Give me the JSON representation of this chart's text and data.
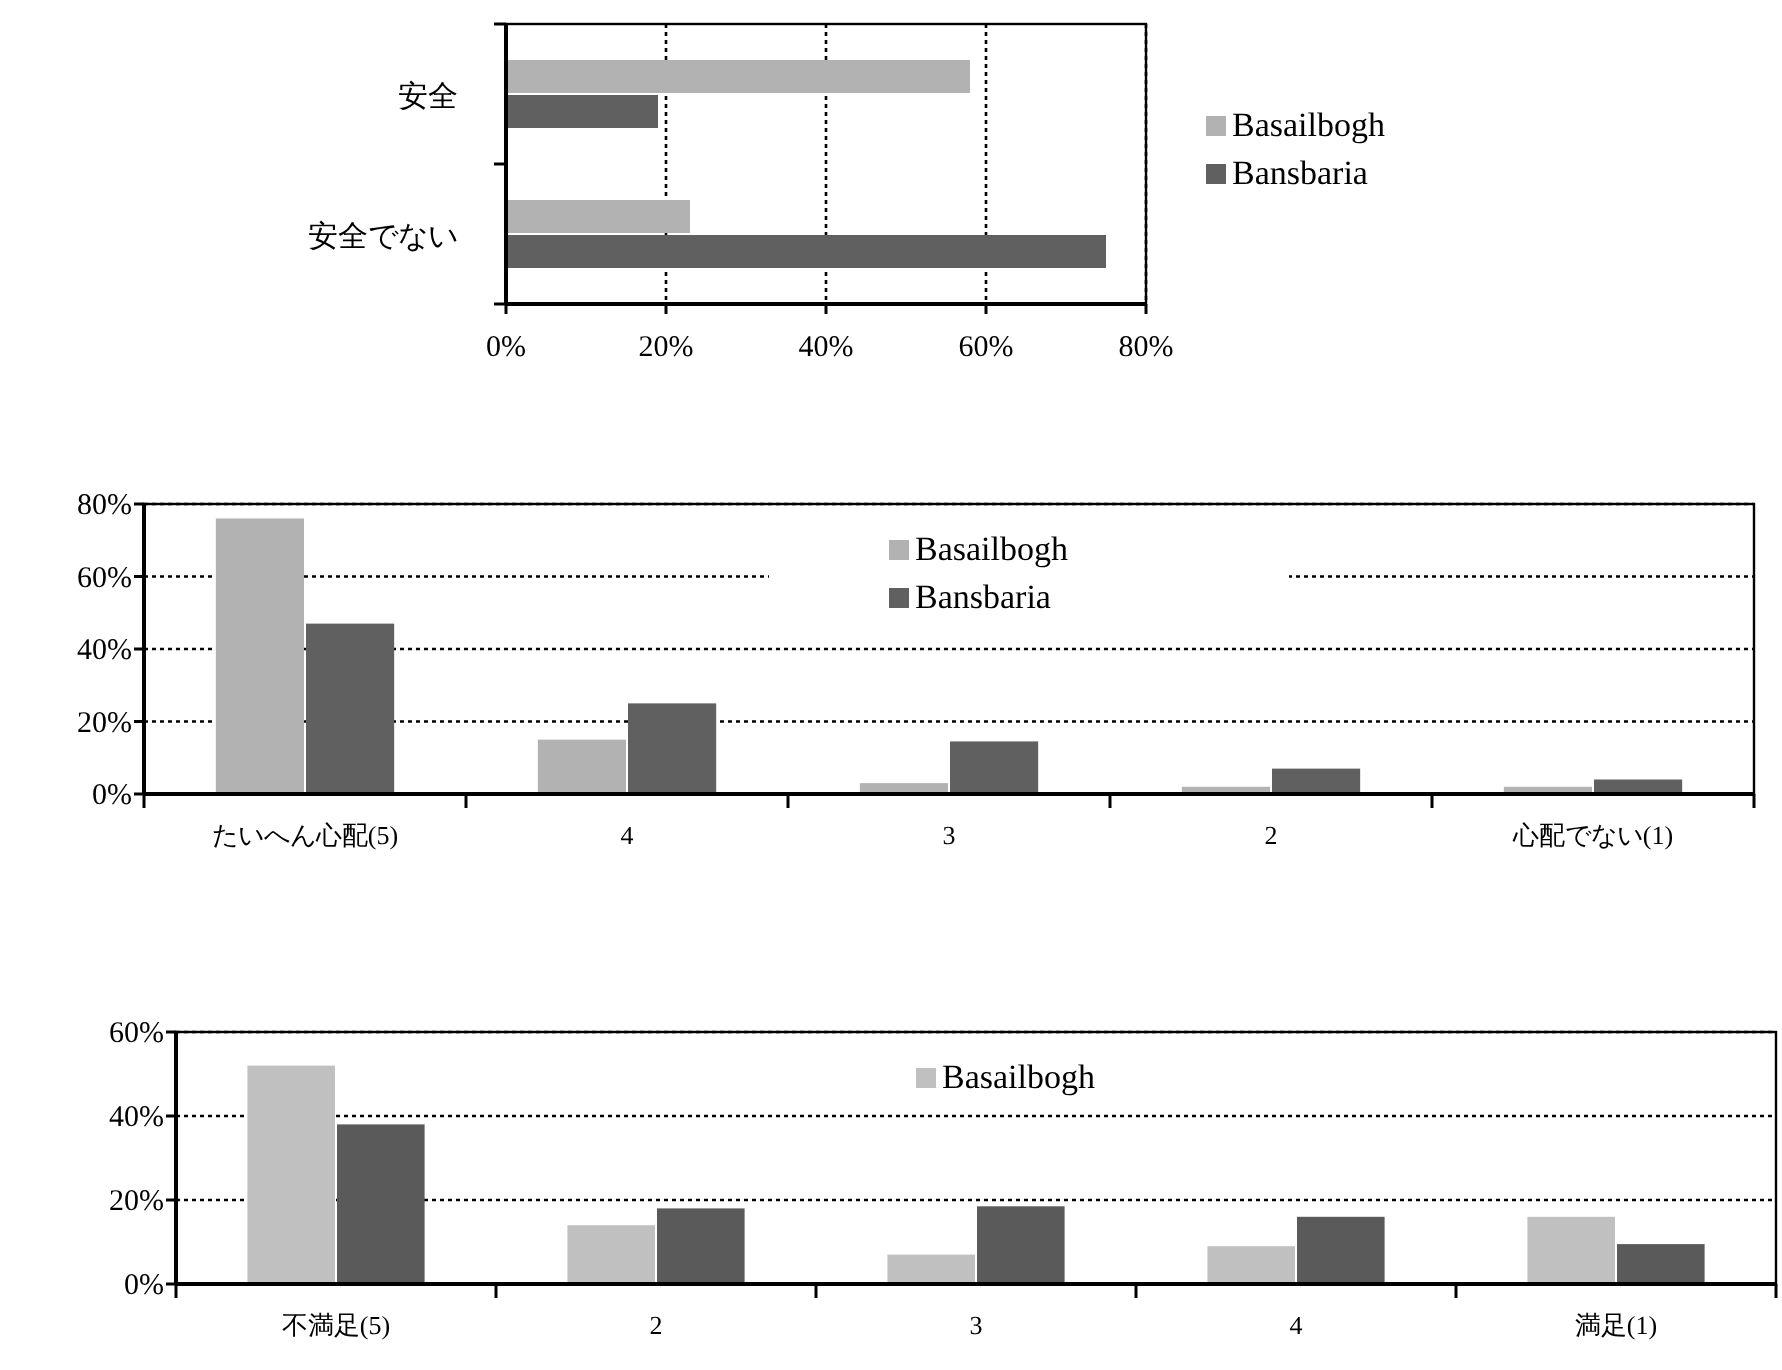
{
  "chart_data": [
    {
      "type": "bar",
      "orientation": "horizontal",
      "categories": [
        "安全",
        "安全でない"
      ],
      "series": [
        {
          "name": "Basailbogh",
          "color": "#b2b2b2",
          "values": [
            58,
            23
          ]
        },
        {
          "name": "Bansbaria",
          "color": "#606060",
          "values": [
            19,
            75
          ]
        }
      ],
      "xlim": [
        0,
        80
      ],
      "xticks": [
        {
          "value": 0,
          "label": "0%"
        },
        {
          "value": 20,
          "label": "20%"
        },
        {
          "value": 40,
          "label": "40%"
        },
        {
          "value": 60,
          "label": "60%"
        },
        {
          "value": 80,
          "label": "80%"
        }
      ],
      "grid": "x",
      "legend": "right"
    },
    {
      "type": "bar",
      "categories": [
        "たいへん心配(5)",
        "4",
        "3",
        "2",
        "心配でない(1)"
      ],
      "series": [
        {
          "name": "Basailbogh",
          "color": "#b2b2b2",
          "values": [
            76,
            15,
            3,
            2,
            2
          ]
        },
        {
          "name": "Bansbaria",
          "color": "#606060",
          "values": [
            47,
            25,
            14.5,
            7,
            4
          ]
        }
      ],
      "ylim": [
        0,
        80
      ],
      "yticks": [
        {
          "value": 0,
          "label": "0%"
        },
        {
          "value": 20,
          "label": "20%"
        },
        {
          "value": 40,
          "label": "40%"
        },
        {
          "value": 60,
          "label": "60%"
        },
        {
          "value": 80,
          "label": "80%"
        }
      ],
      "grid": "y",
      "legend": "top"
    },
    {
      "type": "bar",
      "categories": [
        "不満足(5)",
        "2",
        "3",
        "4",
        "満足(1)"
      ],
      "series": [
        {
          "name": "Basailbogh",
          "color": "#c0c0c0",
          "values": [
            52,
            14,
            7,
            9,
            16
          ]
        },
        {
          "color": "#5a5a5a",
          "values": [
            38,
            18,
            18.5,
            16,
            9.5
          ]
        }
      ],
      "ylim": [
        0,
        60
      ],
      "yticks": [
        {
          "value": 0,
          "label": "0%"
        },
        {
          "value": 20,
          "label": "20%"
        },
        {
          "value": 40,
          "label": "40%"
        },
        {
          "value": 60,
          "label": "60%"
        }
      ],
      "grid": "y",
      "legend": "top"
    }
  ]
}
